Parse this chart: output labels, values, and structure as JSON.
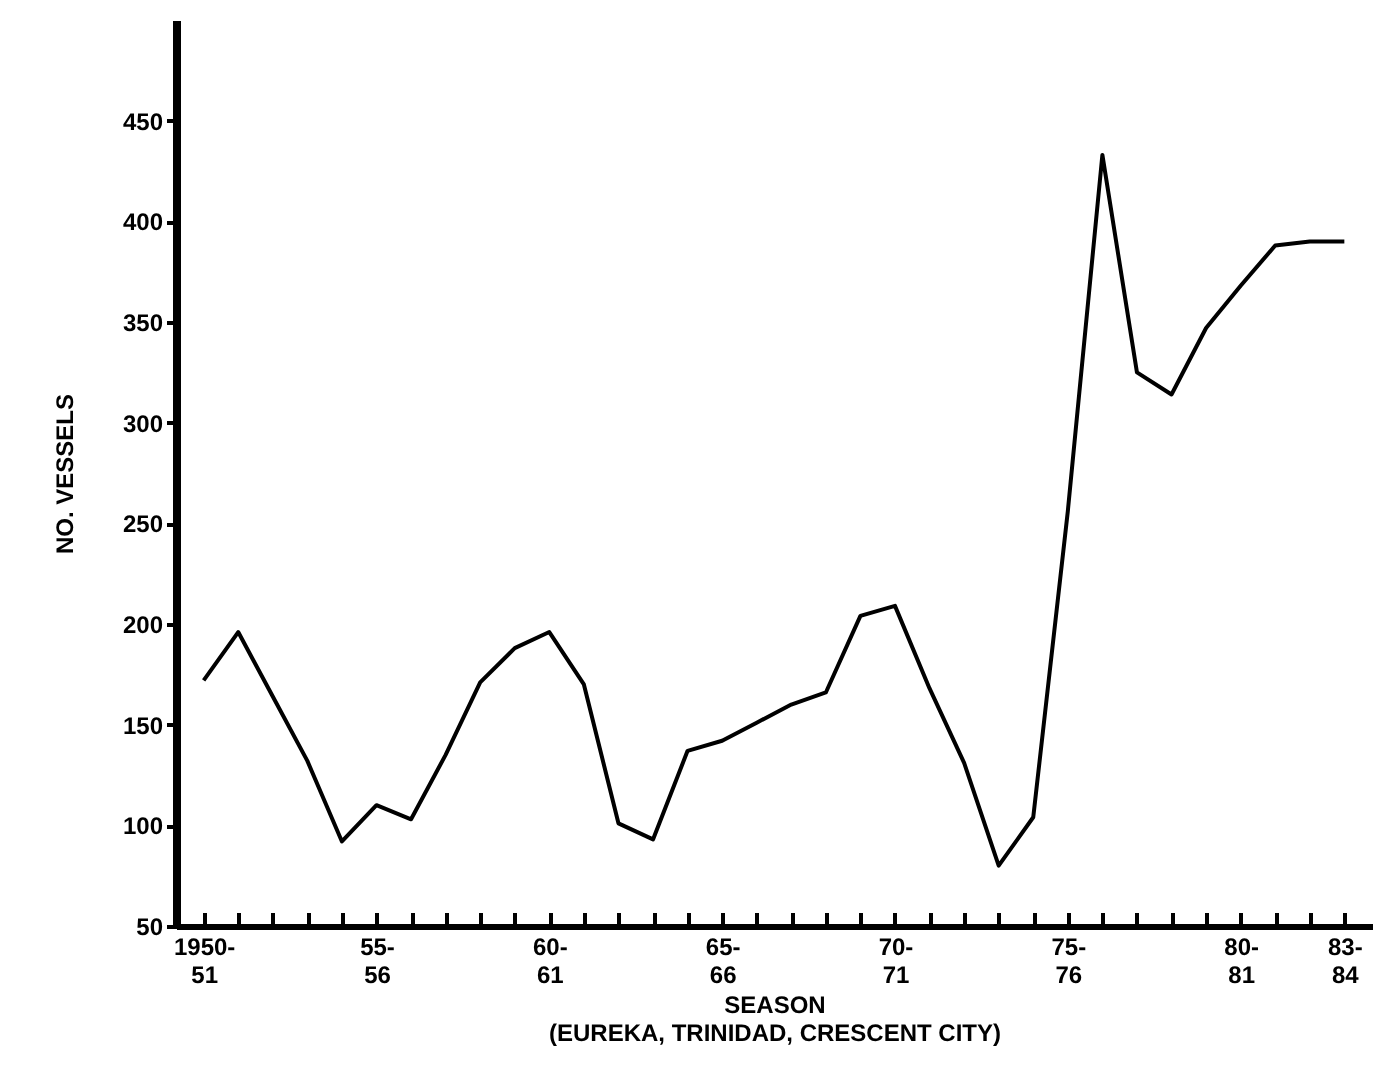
{
  "chart_data": {
    "type": "line",
    "xlabel": "SEASON\n(EUREKA, TRINIDAD, CRESCENT CITY)",
    "ylabel": "NO. VESSELS",
    "categories": [
      "1950-\n51",
      null,
      null,
      null,
      null,
      "55-\n56",
      null,
      null,
      null,
      null,
      "60-\n61",
      null,
      null,
      null,
      null,
      "65-\n66",
      null,
      null,
      null,
      null,
      "70-\n71",
      null,
      null,
      null,
      null,
      "75-\n76",
      null,
      null,
      null,
      null,
      "80-\n81",
      null,
      null,
      "83-\n84"
    ],
    "series": [
      {
        "color": "#000000",
        "values": [
          172,
          196,
          164,
          132,
          92,
          110,
          103,
          135,
          171,
          188,
          196,
          170,
          101,
          93,
          137,
          142,
          151,
          160,
          166,
          204,
          209,
          168,
          131,
          80,
          104,
          256,
          433,
          325,
          314,
          347,
          368,
          388,
          390,
          390
        ]
      }
    ],
    "ylim": [
      50,
      500
    ],
    "yticks": [
      50,
      100,
      150,
      200,
      250,
      300,
      350,
      400,
      450
    ],
    "grid": false,
    "marker": "none",
    "line_style": "solid"
  }
}
